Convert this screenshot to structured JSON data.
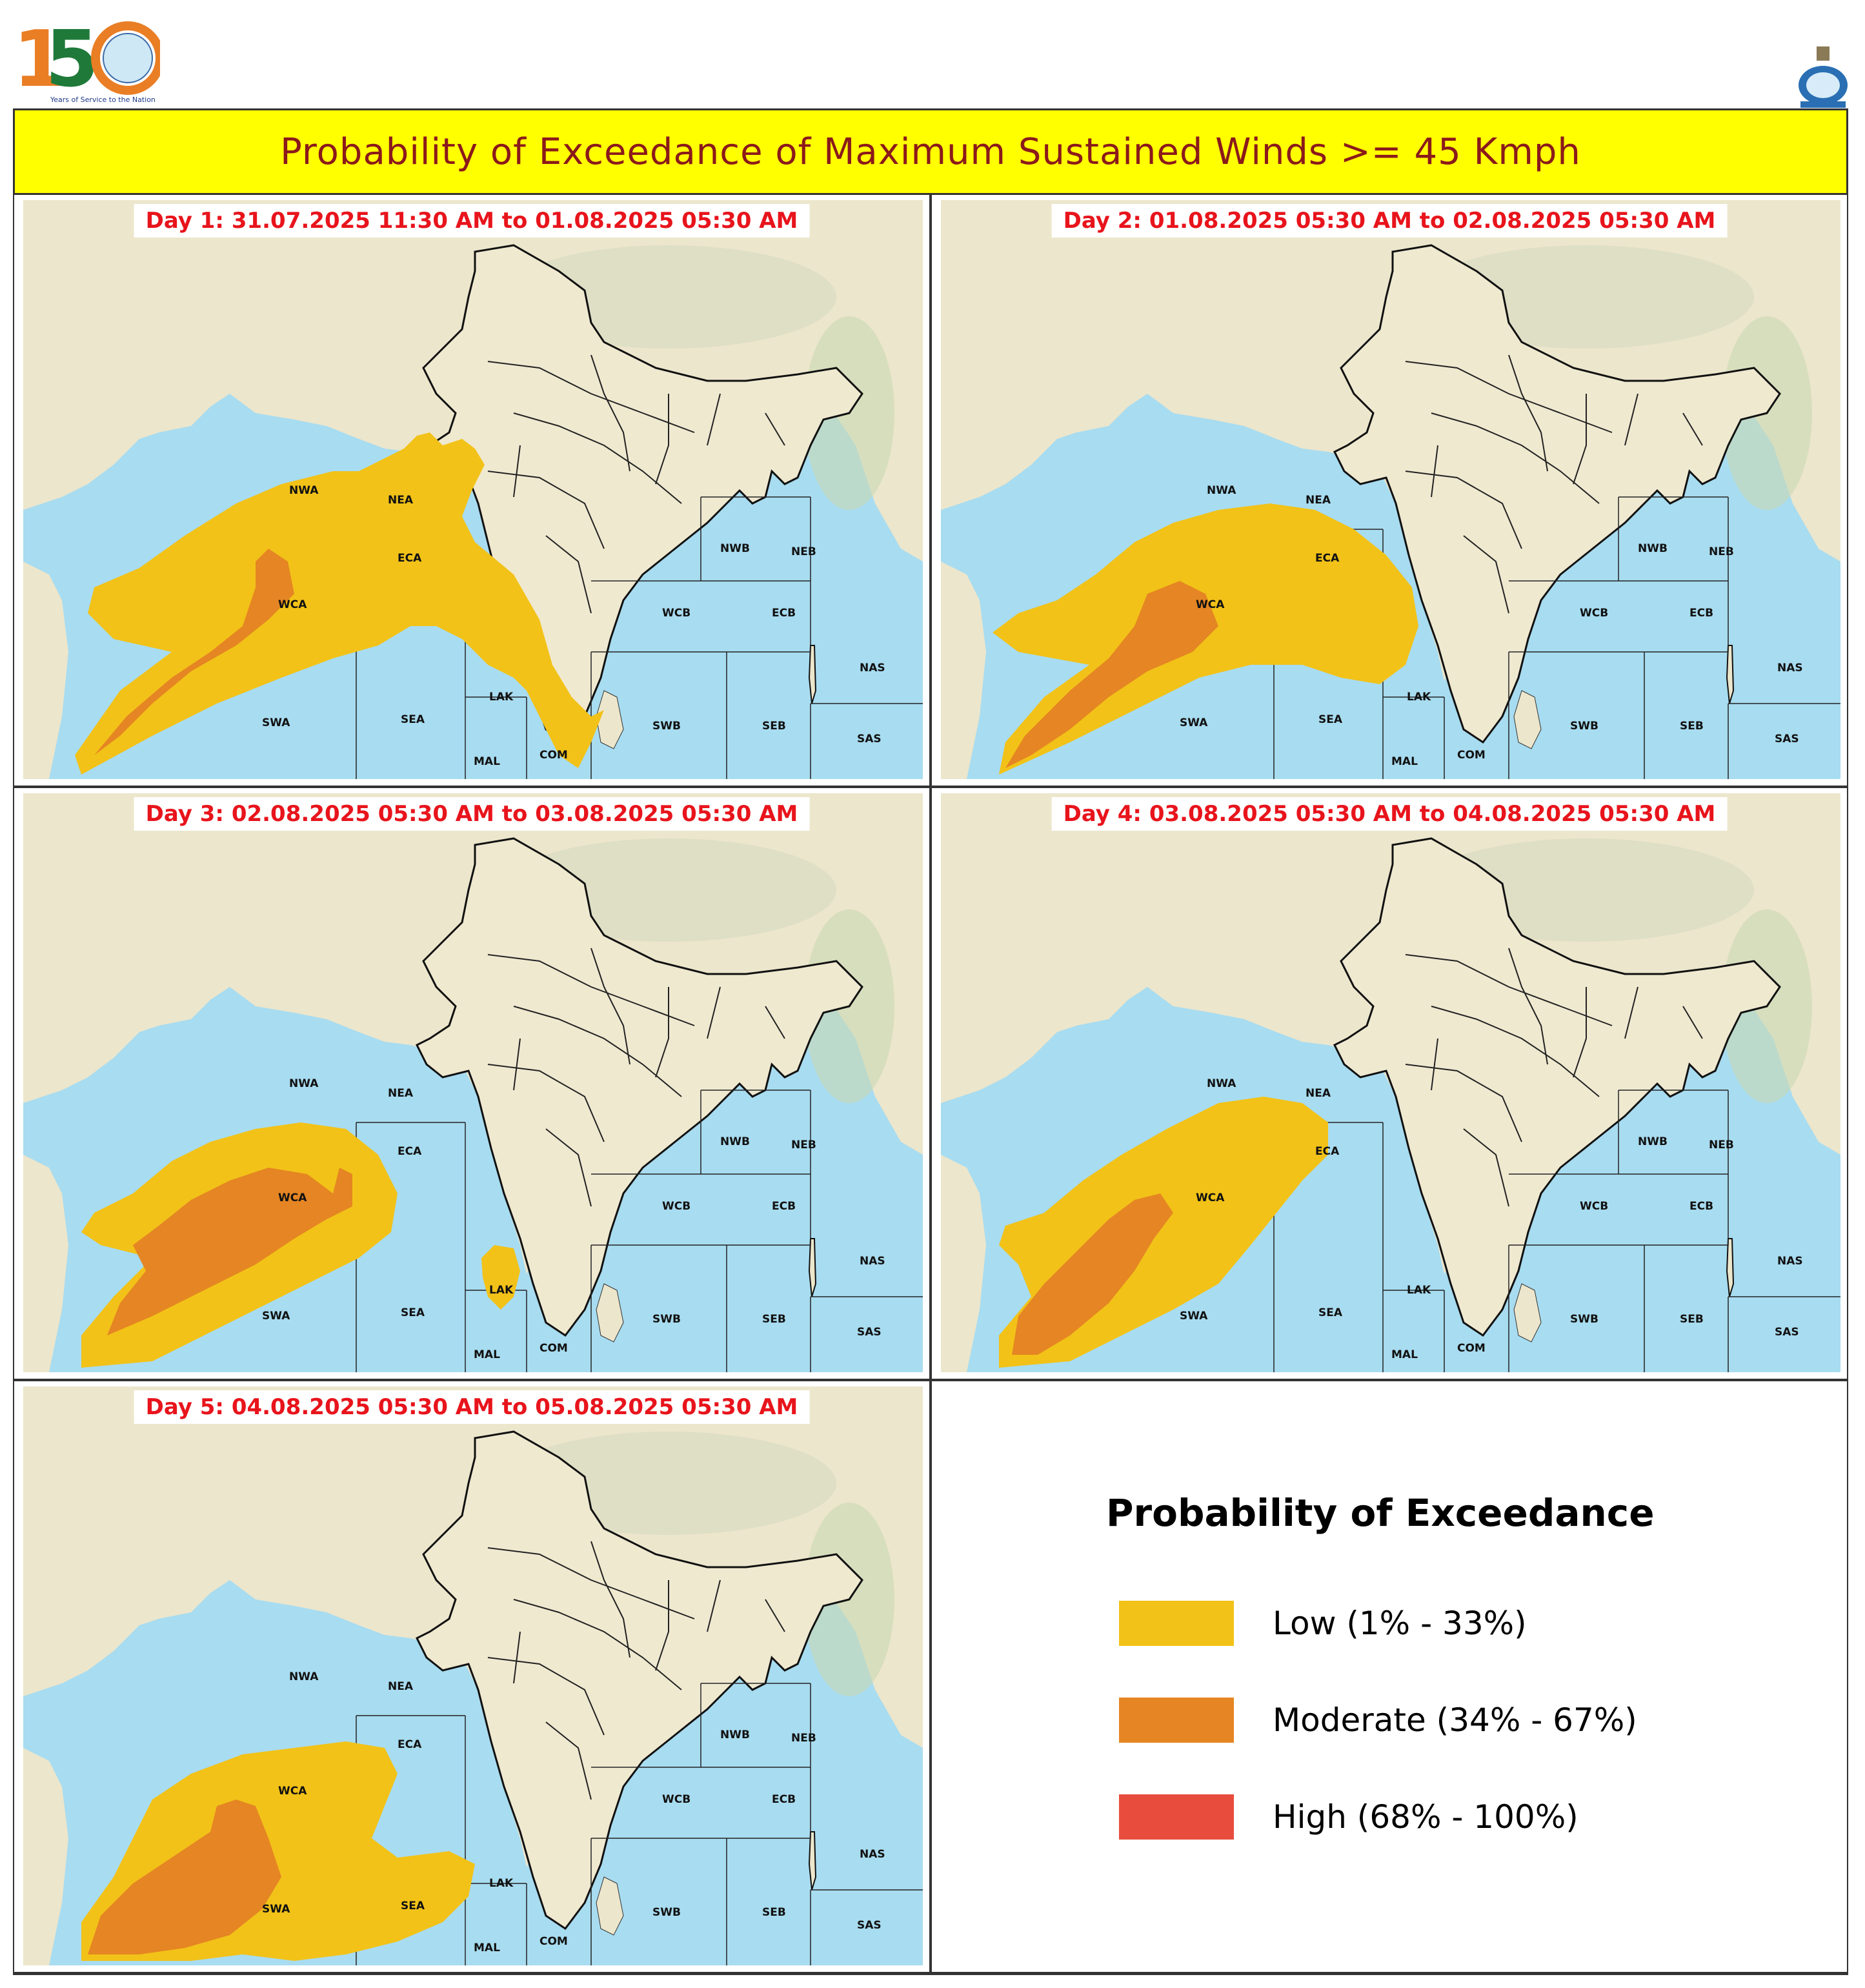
{
  "header": {
    "logo_text": "Years of Service to the Nation",
    "logo_number": "150"
  },
  "title": "Probability of Exceedance of Maximum Sustained Winds >= 45 Kmph",
  "colors": {
    "title_band": "#ffff00",
    "title_text": "#8b1a1a",
    "day_label": "#e8141c",
    "sea": "#a8dcf0",
    "land": "#ece6cc",
    "low": "#f2c218",
    "moderate": "#e58523",
    "high": "#e84c3d"
  },
  "zones": [
    "NWA",
    "NEA",
    "ECA",
    "WCA",
    "SWA",
    "SEA",
    "LAK",
    "MAL",
    "COM",
    "NWB",
    "NEB",
    "WCB",
    "ECB",
    "SWB",
    "SEB",
    "NAS",
    "SAS"
  ],
  "panels": [
    {
      "label": "Day 1: 31.07.2025 11:30 AM to 01.08.2025 05:30 AM",
      "low": true,
      "moderate": true,
      "high": false
    },
    {
      "label": "Day 2: 01.08.2025 05:30 AM to 02.08.2025 05:30 AM",
      "low": true,
      "moderate": true,
      "high": false
    },
    {
      "label": "Day 3: 02.08.2025 05:30 AM to 03.08.2025 05:30 AM",
      "low": true,
      "moderate": true,
      "high": false
    },
    {
      "label": "Day 4: 03.08.2025 05:30 AM to 04.08.2025 05:30 AM",
      "low": true,
      "moderate": true,
      "high": false
    },
    {
      "label": "Day 5: 04.08.2025 05:30 AM to 05.08.2025 05:30 AM",
      "low": true,
      "moderate": true,
      "high": false
    }
  ],
  "legend": {
    "title": "Probability of Exceedance",
    "items": [
      {
        "label": "Low (1% - 33%)",
        "color": "#f2c218"
      },
      {
        "label": "Moderate (34% - 67%)",
        "color": "#e58523"
      },
      {
        "label": "High (68% - 100%)",
        "color": "#e84c3d"
      }
    ]
  }
}
